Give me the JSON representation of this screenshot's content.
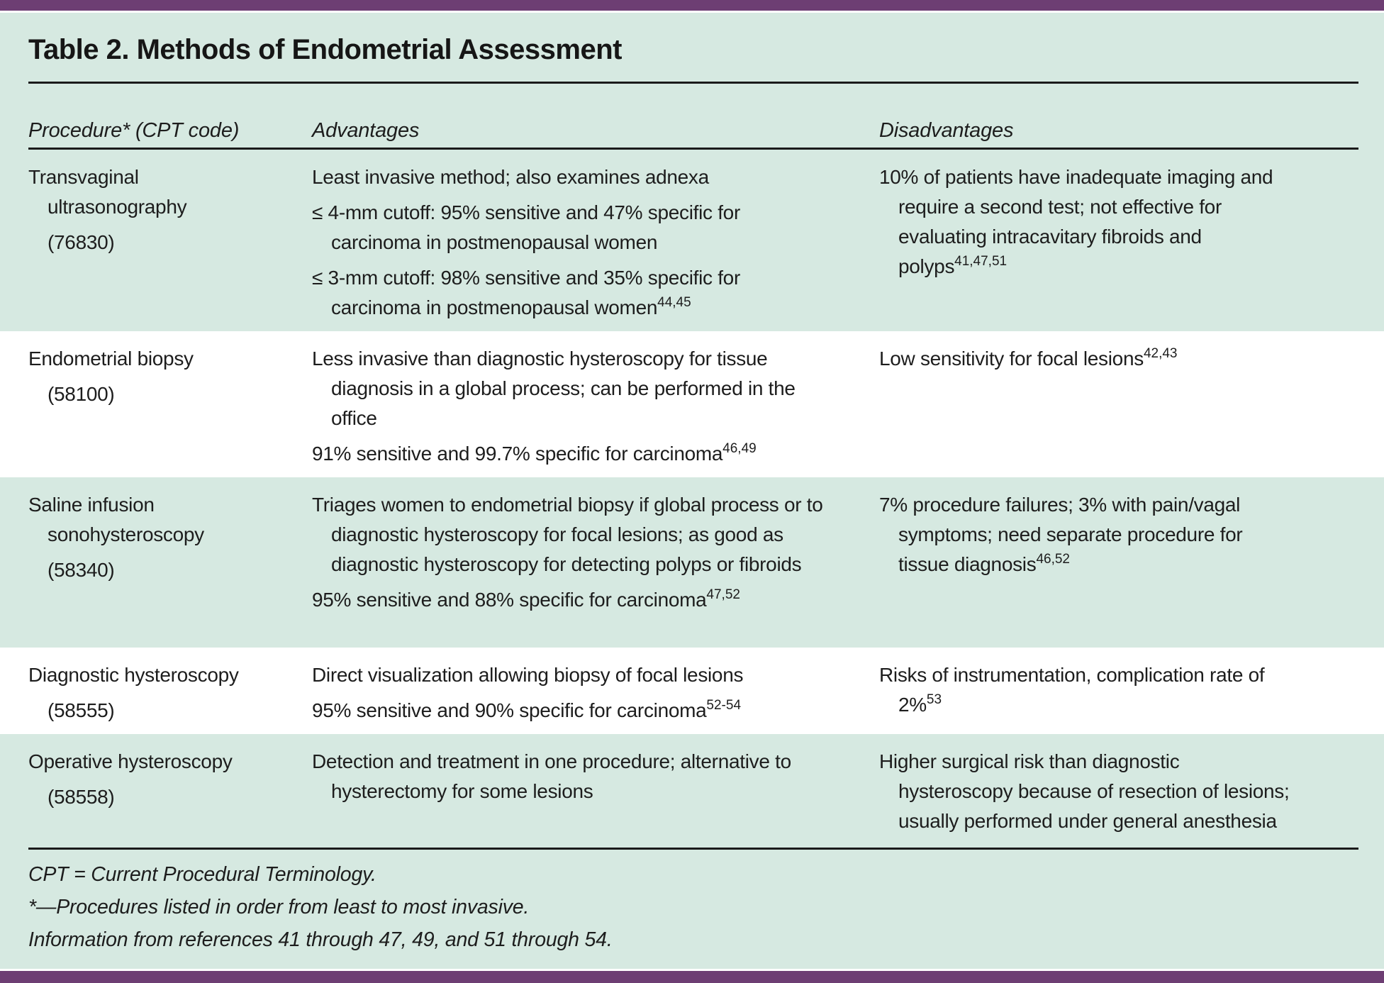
{
  "title": "Table 2. Methods of Endometrial Assessment",
  "colors": {
    "accent_purple": "#6d3e73",
    "mint_band": "#d6e9e1",
    "row_alt_white": "#ffffff",
    "text": "#1d1d1d"
  },
  "table": {
    "headers": [
      "Procedure* (CPT code)",
      "Advantages",
      "Disadvantages"
    ],
    "rows": [
      {
        "procedure": {
          "name": "Transvaginal ultrasonography",
          "code": "(76830)"
        },
        "advantages": [
          {
            "text": "Least invasive method; also examines adnexa"
          },
          {
            "text": "≤ 4-mm cutoff: 95% sensitive and 47% specific for carcinoma in postmenopausal women"
          },
          {
            "text": "≤ 3-mm cutoff: 98% sensitive and 35% specific for carcinoma in postmenopausal women",
            "sup": "44,45"
          }
        ],
        "disadvantages": [
          {
            "text": "10% of patients have inadequate imaging and require a second test; not effective for evaluating intracavitary fibroids and polyps",
            "sup": "41,47,51"
          }
        ]
      },
      {
        "procedure": {
          "name": "Endometrial biopsy",
          "code": "(58100)"
        },
        "advantages": [
          {
            "text": "Less invasive than diagnostic hysteroscopy for tissue diagnosis in a global process; can be performed in the office"
          },
          {
            "text": "91% sensitive and 99.7% specific for carcinoma",
            "sup": "46,49"
          }
        ],
        "disadvantages": [
          {
            "text": "Low sensitivity for focal lesions",
            "sup": "42,43"
          }
        ]
      },
      {
        "procedure": {
          "name": "Saline infusion sonohysteroscopy",
          "code": "(58340)"
        },
        "advantages": [
          {
            "text": "Triages women to endometrial biopsy if global process or to diagnostic hysteroscopy for focal lesions; as good as diagnostic hysteroscopy for detecting polyps or fibroids"
          },
          {
            "text": "95% sensitive and 88% specific for carcinoma",
            "sup": "47,52"
          }
        ],
        "disadvantages": [
          {
            "text": "7% procedure failures; 3% with pain/vagal symptoms; need separate procedure for tissue diagnosis",
            "sup": "46,52"
          }
        ]
      },
      {
        "procedure": {
          "name": "Diagnostic hysteroscopy",
          "code": "(58555)"
        },
        "advantages": [
          {
            "text": "Direct visualization allowing biopsy of focal lesions"
          },
          {
            "text": "95% sensitive and 90% specific for carcinoma",
            "sup": "52-54"
          }
        ],
        "disadvantages": [
          {
            "text": "Risks of instrumentation, complication rate of 2%",
            "sup": "53"
          }
        ]
      },
      {
        "procedure": {
          "name": "Operative hysteroscopy",
          "code": "(58558)"
        },
        "advantages": [
          {
            "text": "Detection and treatment in one procedure; alternative to hysterectomy for some lesions"
          }
        ],
        "disadvantages": [
          {
            "text": "Higher surgical risk than diagnostic hysteroscopy because of resection of lesions; usually performed under general anesthesia"
          }
        ]
      }
    ]
  },
  "footnotes": [
    "CPT = Current Procedural Terminology.",
    "*—Procedures listed in order from least to most invasive.",
    "Information from references 41 through 47, 49, and 51 through 54."
  ]
}
